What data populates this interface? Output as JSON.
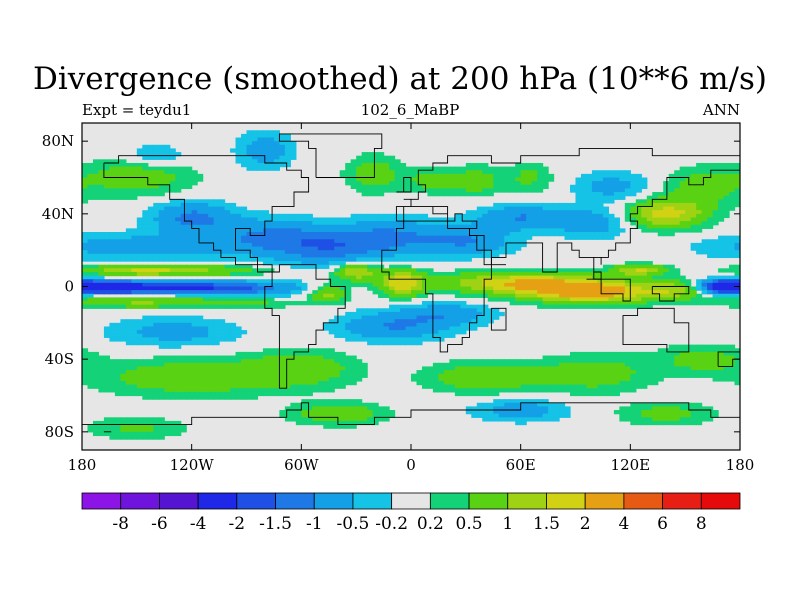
{
  "header": {
    "title": "Divergence (smoothed) at 200 hPa (10**6 m/s)",
    "left_label": "Expt = teydu1",
    "center_label": "102_6_MaBP",
    "right_label": "ANN"
  },
  "colors": {
    "background": "#e6e6e6",
    "outline": "#000000",
    "zero_line": "#ffffff"
  },
  "chart_data": {
    "type": "heatmap",
    "projection": "cylindrical-equidistant",
    "xlim": [
      -180,
      180
    ],
    "ylim": [
      -90,
      90
    ],
    "x_ticks": [
      {
        "value": -180,
        "label": "180"
      },
      {
        "value": -120,
        "label": "120W"
      },
      {
        "value": -60,
        "label": "60W"
      },
      {
        "value": 0,
        "label": "0"
      },
      {
        "value": 60,
        "label": "60E"
      },
      {
        "value": 120,
        "label": "120E"
      },
      {
        "value": 180,
        "label": "180"
      }
    ],
    "y_ticks": [
      {
        "value": 80,
        "label": "80N"
      },
      {
        "value": 40,
        "label": "40N"
      },
      {
        "value": 0,
        "label": "0"
      },
      {
        "value": -40,
        "label": "40S"
      },
      {
        "value": -80,
        "label": "80S"
      }
    ],
    "levels": [
      "-8",
      "-6",
      "-4",
      "-2",
      "-1.5",
      "-1",
      "-0.5",
      "-0.2",
      "0.2",
      "0.5",
      "1",
      "1.5",
      "2",
      "4",
      "6",
      "8"
    ],
    "level_values": [
      -8,
      -6,
      -4,
      -2,
      -1.5,
      -1,
      -0.5,
      -0.2,
      0.2,
      0.5,
      1,
      1.5,
      2,
      4,
      6,
      8
    ],
    "colorbar_colors": [
      "#8c14e6",
      "#6e14dc",
      "#5514d2",
      "#1e28e6",
      "#1e50e6",
      "#1e78e6",
      "#14a0e6",
      "#14c3e6",
      "#e6e6e6",
      "#14d278",
      "#5ad214",
      "#a0d214",
      "#d2d214",
      "#e6a014",
      "#e65a14",
      "#e61e14",
      "#e60a0a"
    ],
    "field_description": "200 hPa divergence, annual mean",
    "features": [
      {
        "lon": -170,
        "lat": 0,
        "value": -2.6,
        "wlon": 22,
        "wlat": 3.5
      },
      {
        "lon": -130,
        "lat": -1,
        "value": -1.8,
        "wlon": 40,
        "wlat": 3.5
      },
      {
        "lon": -90,
        "lat": -1,
        "value": -0.9,
        "wlon": 35,
        "wlat": 4
      },
      {
        "lon": -150,
        "lat": 9,
        "value": 1.4,
        "wlon": 30,
        "wlat": 3
      },
      {
        "lon": -110,
        "lat": 9,
        "value": 0.8,
        "wlon": 35,
        "wlat": 3
      },
      {
        "lon": -150,
        "lat": -8,
        "value": 1.1,
        "wlon": 35,
        "wlat": 3.5
      },
      {
        "lon": -95,
        "lat": -9,
        "value": 0.7,
        "wlon": 30,
        "wlat": 3
      },
      {
        "lon": -150,
        "lat": 22,
        "value": -0.8,
        "wlon": 50,
        "wlat": 7
      },
      {
        "lon": -120,
        "lat": 38,
        "value": -1.1,
        "wlon": 22,
        "wlat": 9
      },
      {
        "lon": -80,
        "lat": 28,
        "value": -0.9,
        "wlon": 30,
        "wlat": 10
      },
      {
        "lon": -45,
        "lat": 22,
        "value": -1.3,
        "wlon": 30,
        "wlat": 10
      },
      {
        "lon": -10,
        "lat": 28,
        "value": -0.9,
        "wlon": 25,
        "wlat": 10
      },
      {
        "lon": 30,
        "lat": 25,
        "value": -1.0,
        "wlon": 25,
        "wlat": 8
      },
      {
        "lon": 60,
        "lat": 38,
        "value": -1.0,
        "wlon": 25,
        "wlat": 7
      },
      {
        "lon": 100,
        "lat": 35,
        "value": -0.8,
        "wlon": 20,
        "wlat": 8
      },
      {
        "lon": -150,
        "lat": 60,
        "value": 0.8,
        "wlon": 30,
        "wlat": 10
      },
      {
        "lon": -140,
        "lat": 72,
        "value": -0.6,
        "wlon": 15,
        "wlat": 6
      },
      {
        "lon": -80,
        "lat": 75,
        "value": -0.8,
        "wlon": 15,
        "wlat": 10
      },
      {
        "lon": -20,
        "lat": 62,
        "value": 0.8,
        "wlon": 15,
        "wlat": 10
      },
      {
        "lon": 10,
        "lat": 58,
        "value": 0.7,
        "wlon": 12,
        "wlat": 6
      },
      {
        "lon": 35,
        "lat": 58,
        "value": 0.8,
        "wlon": 15,
        "wlat": 8
      },
      {
        "lon": 65,
        "lat": 60,
        "value": 0.6,
        "wlon": 12,
        "wlat": 8
      },
      {
        "lon": 140,
        "lat": 40,
        "value": 1.7,
        "wlon": 22,
        "wlat": 8
      },
      {
        "lon": 160,
        "lat": 55,
        "value": 0.8,
        "wlon": 20,
        "wlat": 10
      },
      {
        "lon": 110,
        "lat": 55,
        "value": -0.7,
        "wlon": 20,
        "wlat": 8
      },
      {
        "lon": -30,
        "lat": 8,
        "value": 1.5,
        "wlon": 12,
        "wlat": 5
      },
      {
        "lon": -5,
        "lat": 2,
        "value": 1.8,
        "wlon": 12,
        "wlat": 7
      },
      {
        "lon": -45,
        "lat": -4,
        "value": 1.2,
        "wlon": 10,
        "wlat": 5
      },
      {
        "lon": 60,
        "lat": 2,
        "value": 1.9,
        "wlon": 40,
        "wlat": 6
      },
      {
        "lon": 100,
        "lat": -3,
        "value": 2.4,
        "wlon": 35,
        "wlat": 6
      },
      {
        "lon": 125,
        "lat": 9,
        "value": 1.5,
        "wlon": 15,
        "wlat": 3
      },
      {
        "lon": 145,
        "lat": -2,
        "value": 1.0,
        "wlon": 15,
        "wlat": 5
      },
      {
        "lon": 170,
        "lat": 0,
        "value": -1.8,
        "wlon": 12,
        "wlat": 4
      },
      {
        "lon": -10,
        "lat": -22,
        "value": -1.0,
        "wlon": 30,
        "wlat": 8
      },
      {
        "lon": 20,
        "lat": -15,
        "value": -0.8,
        "wlon": 25,
        "wlat": 6
      },
      {
        "lon": -130,
        "lat": -25,
        "value": -0.7,
        "wlon": 35,
        "wlat": 8
      },
      {
        "lon": -120,
        "lat": -50,
        "value": 0.9,
        "wlon": 50,
        "wlat": 10
      },
      {
        "lon": -60,
        "lat": -45,
        "value": 0.8,
        "wlon": 30,
        "wlat": 10
      },
      {
        "lon": 40,
        "lat": -50,
        "value": 1.0,
        "wlon": 30,
        "wlat": 8
      },
      {
        "lon": 100,
        "lat": -48,
        "value": 0.8,
        "wlon": 30,
        "wlat": 10
      },
      {
        "lon": 160,
        "lat": -40,
        "value": 0.7,
        "wlon": 25,
        "wlat": 8
      },
      {
        "lon": -40,
        "lat": -70,
        "value": 0.9,
        "wlon": 25,
        "wlat": 6
      },
      {
        "lon": 60,
        "lat": -68,
        "value": -0.8,
        "wlon": 25,
        "wlat": 6
      },
      {
        "lon": 140,
        "lat": -70,
        "value": 0.7,
        "wlon": 25,
        "wlat": 6
      },
      {
        "lon": -150,
        "lat": -78,
        "value": 0.6,
        "wlon": 25,
        "wlat": 6
      }
    ]
  }
}
